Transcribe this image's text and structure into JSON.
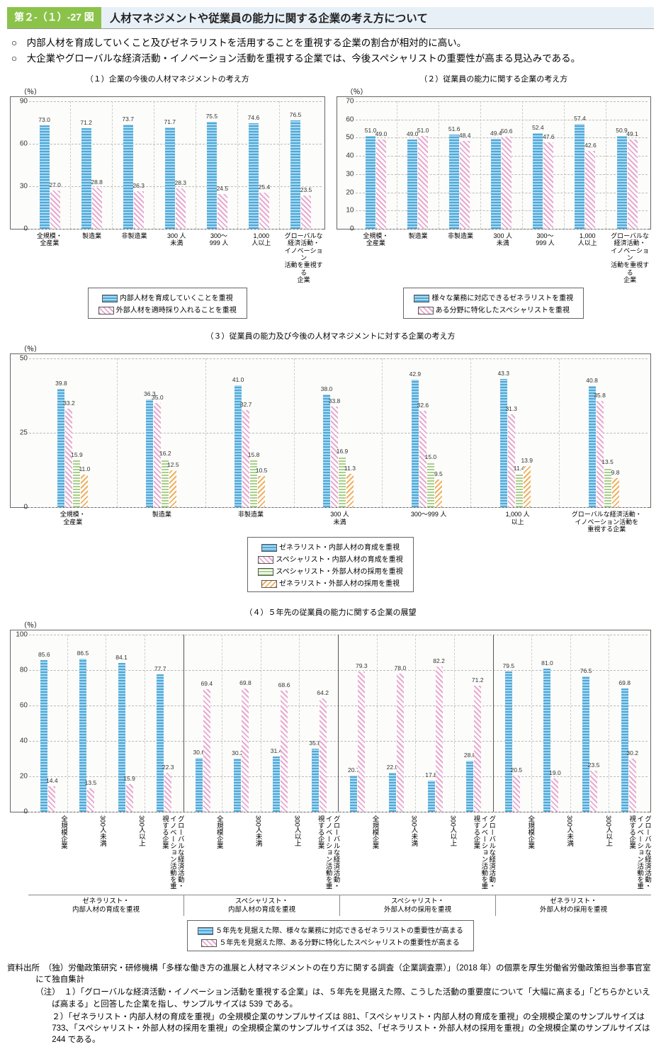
{
  "header": {
    "tag": "第２-（１）-27 図",
    "title": "人材マネジメントや従業員の能力に関する企業の考え方について"
  },
  "bullets": [
    "○　内部人材を育成していくこと及びゼネラリストを活用することを重視する企業の割合が相対的に高い。",
    "○　大企業やグローバルな経済活動・イノベーション活動を重視する企業では、今後スペシャリストの重要性が高まる見込みである。"
  ],
  "colors": {
    "blue": "#4fa8d8",
    "pink": "#e8a8d0",
    "green": "#a8d088",
    "orange": "#f0b060",
    "border": "#666",
    "grid": "#bbb"
  },
  "chart1": {
    "title": "（１）企業の今後の人材マネジメントの考え方",
    "ylabel": "（％）",
    "ymax": 90,
    "ytick": 30,
    "categories": [
      "全規模・\n全産業",
      "製造業",
      "非製造業",
      "300 人\n未満",
      "300～\n999 人",
      "1,000\n人以上",
      "グローバルな\n経済活動・\nイノベーション\n活動を重視する\n企業"
    ],
    "series": [
      {
        "fill": "fill-blue",
        "values": [
          73.0,
          71.2,
          73.7,
          71.7,
          75.5,
          74.6,
          76.5
        ]
      },
      {
        "fill": "fill-pink",
        "values": [
          27.0,
          28.8,
          26.3,
          28.3,
          24.5,
          25.4,
          23.5
        ]
      }
    ],
    "legend": [
      {
        "fill": "fill-blue",
        "label": "内部人材を育成していくことを重視"
      },
      {
        "fill": "fill-pink",
        "label": "外部人材を適時採り入れることを重視"
      }
    ]
  },
  "chart2": {
    "title": "（２）従業員の能力に関する企業の考え方",
    "ylabel": "（％）",
    "ymax": 70,
    "ytick": 10,
    "categories": [
      "全規模・\n全産業",
      "製造業",
      "非製造業",
      "300 人\n未満",
      "300～\n999 人",
      "1,000\n人以上",
      "グローバルな\n経済活動・\nイノベーション\n活動を重視する\n企業"
    ],
    "series": [
      {
        "fill": "fill-blue",
        "values": [
          51.0,
          49.0,
          51.6,
          49.4,
          52.4,
          57.4,
          50.9
        ]
      },
      {
        "fill": "fill-pink",
        "values": [
          49.0,
          51.0,
          48.4,
          50.6,
          47.6,
          42.6,
          49.1
        ]
      }
    ],
    "legend": [
      {
        "fill": "fill-blue",
        "label": "様々な業務に対応できるゼネラリストを重視"
      },
      {
        "fill": "fill-pink",
        "label": "ある分野に特化したスペシャリストを重視"
      }
    ]
  },
  "chart3": {
    "title": "（３）従業員の能力及び今後の人材マネジメントに対する企業の考え方",
    "ylabel": "（％）",
    "ymax": 50,
    "ytick": 25,
    "categories": [
      "全規模・\n全産業",
      "製造業",
      "非製造業",
      "300 人\n未満",
      "300～999 人",
      "1,000 人\n以上",
      "グローバルな経済活動・\nイノベーション活動を\n重視する企業"
    ],
    "series": [
      {
        "fill": "fill-blue",
        "values": [
          39.8,
          36.3,
          41.0,
          38.0,
          42.9,
          43.3,
          40.8
        ]
      },
      {
        "fill": "fill-pink",
        "values": [
          33.2,
          35.0,
          32.7,
          33.8,
          32.6,
          31.3,
          35.8
        ]
      },
      {
        "fill": "fill-green",
        "values": [
          15.9,
          16.2,
          15.8,
          16.9,
          15.0,
          11.4,
          13.5
        ]
      },
      {
        "fill": "fill-orange",
        "values": [
          11.0,
          12.5,
          10.5,
          11.3,
          9.5,
          13.9,
          9.8
        ]
      }
    ],
    "legend": [
      {
        "fill": "fill-blue",
        "label": "ゼネラリスト・内部人材の育成を重視"
      },
      {
        "fill": "fill-pink",
        "label": "スペシャリスト・内部人材の育成を重視"
      },
      {
        "fill": "fill-green",
        "label": "スペシャリスト・外部人材の採用を重視"
      },
      {
        "fill": "fill-orange",
        "label": "ゼネラリスト・外部人材の採用を重視"
      }
    ]
  },
  "chart4": {
    "title": "（４）５年先の従業員の能力に関する企業の展望",
    "ylabel": "（％）",
    "ymax": 100,
    "ytick": 20,
    "section_labels": [
      "ゼネラリスト・\n内部人材の育成を重視",
      "スペシャリスト・\n内部人材の育成を重視",
      "スペシャリスト・\n外部人材の採用を重視",
      "ゼネラリスト・\n外部人材の採用を重視"
    ],
    "sub_categories": [
      "全規模企業",
      "300人未満",
      "300人以上",
      "グローバルな経済活動・イノベーション活動を重視する企業"
    ],
    "series": [
      {
        "fill": "fill-blue",
        "values": [
          85.6,
          86.5,
          84.1,
          77.7,
          30.6,
          30.2,
          31.4,
          35.8,
          20.7,
          22.0,
          17.8,
          28.8,
          79.5,
          81.0,
          76.5,
          69.8
        ]
      },
      {
        "fill": "fill-pink",
        "values": [
          14.4,
          13.5,
          15.9,
          22.3,
          69.4,
          69.8,
          68.6,
          64.2,
          79.3,
          78.0,
          82.2,
          71.2,
          20.5,
          19.0,
          23.5,
          30.2
        ]
      }
    ],
    "legend": [
      {
        "fill": "fill-blue",
        "label": "５年先を見据えた際、様々な業務に対応できるゼネラリストの重要性が高まる"
      },
      {
        "fill": "fill-pink",
        "label": "５年先を見据えた際、ある分野に特化したスペシャリストの重要性が高まる"
      }
    ]
  },
  "notes": {
    "source_label": "資料出所",
    "source": "（独）労働政策研究・研修機構「多様な働き方の進展と人材マネジメントの在り方に関する調査（企業調査票）」（2018 年）の個票を厚生労働省労働政策担当参事官室にて独自集計",
    "note_label": "（注）",
    "items": [
      "１）「グローバルな経済活動・イノベーション活動を重視する企業」は、５年先を見据えた際、こうした活動の重要度について「大幅に高まる」「どちらかといえば高まる」と回答した企業を指し、サンプルサイズは 539 である。",
      "２）「ゼネラリスト・内部人材の育成を重視」の全規模企業のサンプルサイズは 881、「スペシャリスト・内部人材の育成を重視」の全規模企業のサンプルサイズは 733、「スペシャリスト・外部人材の採用を重視」の全規模企業のサンプルサイズは 352、「ゼネラリスト・外部人材の採用を重視」の全規模企業のサンプルサイズは 244 である。"
    ]
  }
}
